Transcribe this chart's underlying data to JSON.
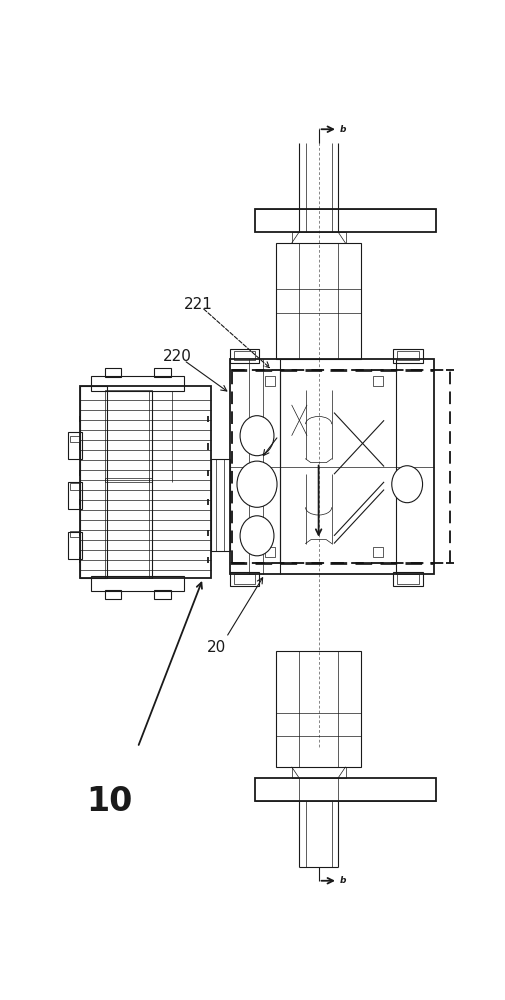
{
  "bg_color": "#ffffff",
  "line_color": "#1a1a1a",
  "fig_width": 5.06,
  "fig_height": 10.0,
  "dpi": 100,
  "label_10": "10",
  "label_20": "20",
  "label_220": "220",
  "label_221": "221",
  "label_b": "b"
}
